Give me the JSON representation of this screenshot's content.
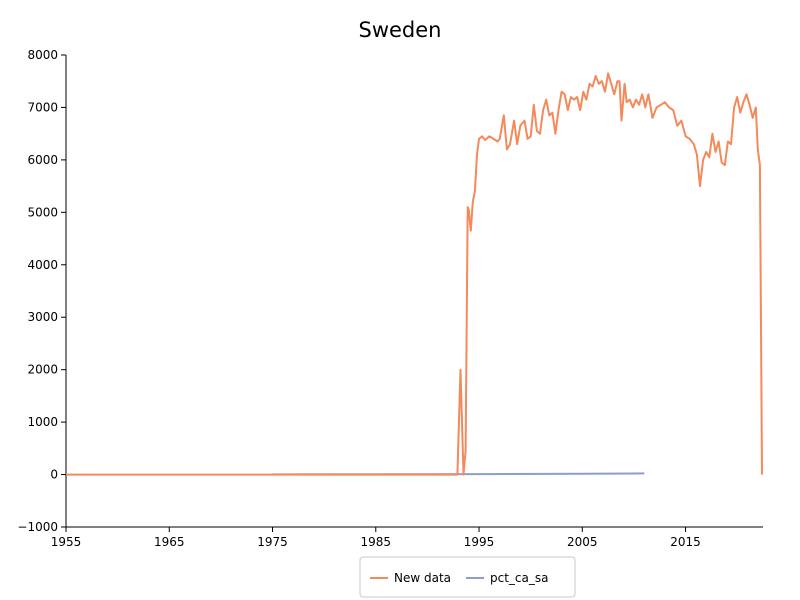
{
  "chart_data": {
    "type": "line",
    "title": "Sweden",
    "xlabel": "",
    "ylabel": "",
    "xlim": [
      1955,
      2022.5
    ],
    "ylim": [
      -1000,
      8000
    ],
    "x_ticks": [
      1955,
      1965,
      1975,
      1985,
      1995,
      2005,
      2015
    ],
    "y_ticks": [
      -1000,
      0,
      1000,
      2000,
      3000,
      4000,
      5000,
      6000,
      7000,
      8000
    ],
    "grid": false,
    "legend": {
      "position": "bottom-center"
    },
    "series": [
      {
        "name": "New data",
        "color": "#f4895c",
        "x": [
          1955,
          1992.9,
          1993.2,
          1993.5,
          1993.7,
          1993.9,
          1994.0,
          1994.2,
          1994.4,
          1994.6,
          1994.8,
          1995.0,
          1995.3,
          1995.6,
          1996.0,
          1996.4,
          1996.8,
          1997.0,
          1997.4,
          1997.7,
          1998.0,
          1998.4,
          1998.7,
          1999.0,
          1999.4,
          1999.7,
          2000.0,
          2000.3,
          2000.6,
          2000.9,
          2001.2,
          2001.5,
          2001.8,
          2002.1,
          2002.4,
          2002.7,
          2003.0,
          2003.3,
          2003.6,
          2003.9,
          2004.2,
          2004.5,
          2004.8,
          2005.1,
          2005.4,
          2005.7,
          2006.0,
          2006.3,
          2006.6,
          2006.9,
          2007.2,
          2007.5,
          2007.8,
          2008.1,
          2008.4,
          2008.6,
          2008.8,
          2009.1,
          2009.3,
          2009.6,
          2009.9,
          2010.2,
          2010.5,
          2010.8,
          2011.1,
          2011.4,
          2011.8,
          2012.2,
          2012.6,
          2013.0,
          2013.4,
          2013.8,
          2014.2,
          2014.6,
          2015.0,
          2015.4,
          2015.8,
          2016.1,
          2016.4,
          2016.7,
          2017.0,
          2017.3,
          2017.6,
          2017.9,
          2018.2,
          2018.5,
          2018.8,
          2019.1,
          2019.4,
          2019.7,
          2020.0,
          2020.3,
          2020.6,
          2020.9,
          2021.2,
          2021.5,
          2021.8,
          2022.0,
          2022.2,
          2022.4
        ],
        "values": [
          0,
          0,
          2000,
          0,
          450,
          5100,
          5050,
          4650,
          5200,
          5400,
          6100,
          6400,
          6450,
          6380,
          6450,
          6400,
          6350,
          6400,
          6850,
          6200,
          6300,
          6750,
          6300,
          6650,
          6750,
          6400,
          6450,
          7050,
          6550,
          6500,
          6950,
          7150,
          6850,
          6900,
          6500,
          6950,
          7300,
          7250,
          6950,
          7200,
          7150,
          7200,
          6950,
          7300,
          7150,
          7450,
          7400,
          7600,
          7450,
          7500,
          7300,
          7650,
          7450,
          7250,
          7500,
          7500,
          6750,
          7450,
          7100,
          7150,
          7000,
          7150,
          7050,
          7250,
          7000,
          7250,
          6800,
          7000,
          7050,
          7100,
          7000,
          6950,
          6650,
          6750,
          6450,
          6400,
          6300,
          6100,
          5500,
          6000,
          6150,
          6050,
          6500,
          6150,
          6350,
          5950,
          5900,
          6350,
          6300,
          7000,
          7200,
          6900,
          7100,
          7250,
          7050,
          6800,
          7000,
          6200,
          5900,
          0
        ]
      },
      {
        "name": "pct_ca_sa",
        "color": "#8b9ece",
        "x": [
          1975,
          1985,
          1995,
          2005,
          2011
        ],
        "values": [
          3,
          5,
          8,
          15,
          22
        ]
      }
    ]
  }
}
